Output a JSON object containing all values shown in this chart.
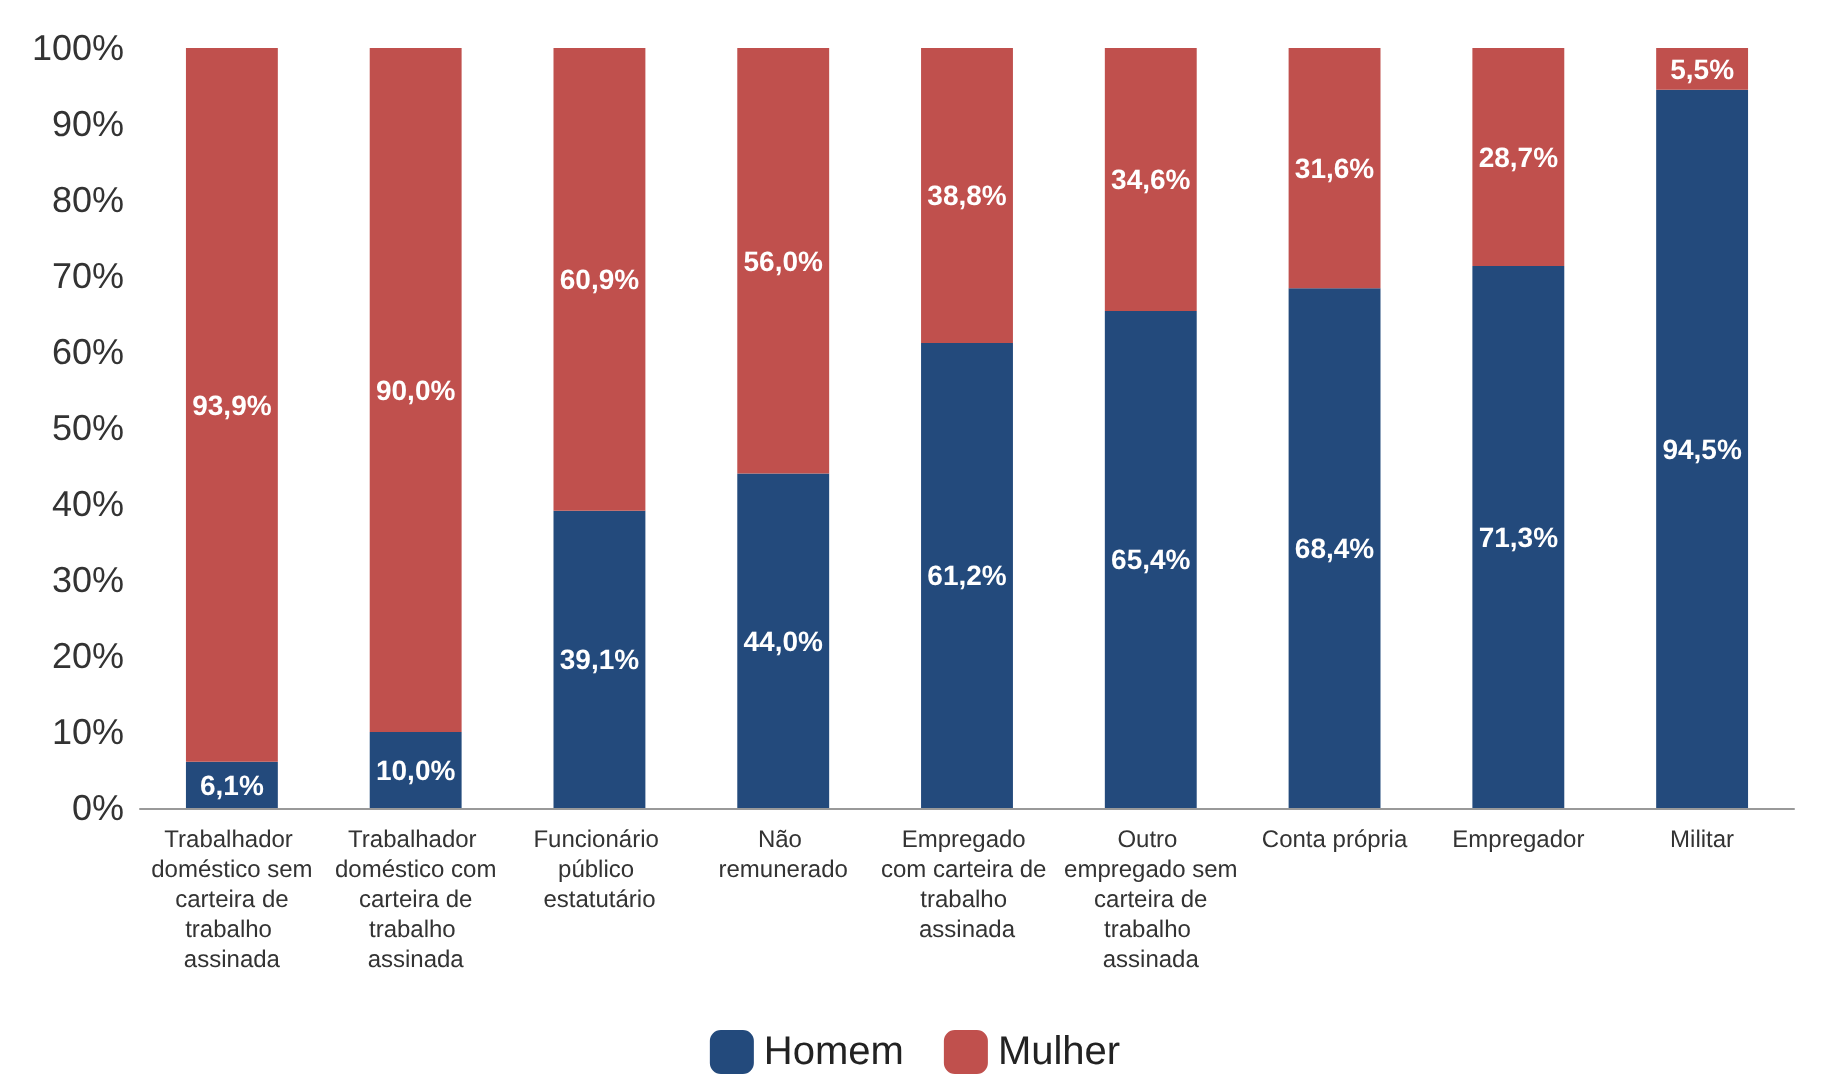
{
  "chart_data": {
    "type": "bar",
    "stacked": true,
    "legend": "bottom",
    "categories": [
      "Trabalhador doméstico sem carteira de trabalho assinada",
      "Trabalhador doméstico com carteira de trabalho assinada",
      "Funcionário público estatutário",
      "Não remunerado",
      "Empregado com carteira de trabalho assinada",
      "Outro empregado sem carteira de trabalho assinada",
      "Conta própria",
      "Empregador",
      "Militar"
    ],
    "series": [
      {
        "name": "Homem",
        "color": "#234a7c",
        "values": [
          6.1,
          10.0,
          39.1,
          44.0,
          61.2,
          65.4,
          68.4,
          71.3,
          94.5
        ],
        "value_labels": [
          "6,1%",
          "10,0%",
          "39,1%",
          "44,0%",
          "61,2%",
          "65,4%",
          "68,4%",
          "71,3%",
          "94,5%"
        ]
      },
      {
        "name": "Mulher",
        "color": "#c0504d",
        "values": [
          93.9,
          90.0,
          60.9,
          56.0,
          38.8,
          34.6,
          31.6,
          28.7,
          5.5
        ],
        "value_labels": [
          "93,9%",
          "90,0%",
          "60,9%",
          "56,0%",
          "38,8%",
          "34,6%",
          "31,6%",
          "28,7%",
          "5,5%"
        ]
      }
    ],
    "ylim": [
      0,
      100
    ],
    "yticks": [
      {
        "value": 0,
        "label": "0%"
      },
      {
        "value": 10,
        "label": "10%"
      },
      {
        "value": 20,
        "label": "20%"
      },
      {
        "value": 30,
        "label": "30%"
      },
      {
        "value": 40,
        "label": "40%"
      },
      {
        "value": 50,
        "label": "50%"
      },
      {
        "value": 60,
        "label": "60%"
      },
      {
        "value": 70,
        "label": "70%"
      },
      {
        "value": 80,
        "label": "80%"
      },
      {
        "value": 90,
        "label": "90%"
      },
      {
        "value": 100,
        "label": "100%"
      }
    ]
  }
}
